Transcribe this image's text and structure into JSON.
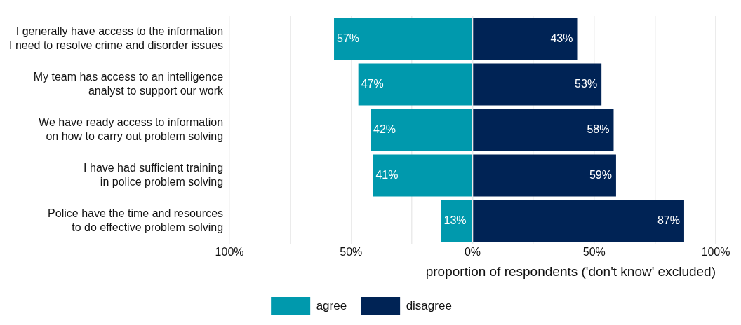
{
  "chart_data": {
    "type": "bar",
    "orientation": "horizontal",
    "categories": [
      "I generally have access to the information\nI need to resolve crime and disorder issues",
      "My team has access to an intelligence\nanalyst to support our work",
      "We have ready access to information\non how to carry out problem solving",
      "I have had sufficient training\nin police problem solving",
      "Police have the time and resources\nto do effective problem solving"
    ],
    "series": [
      {
        "name": "agree",
        "color": "#0099ad",
        "base": [
          -57,
          -47,
          -42,
          -41,
          -13
        ],
        "values": [
          57,
          47,
          42,
          41,
          13
        ],
        "value_labels": [
          "57%",
          "47%",
          "42%",
          "41%",
          "13%"
        ]
      },
      {
        "name": "disagree",
        "color": "#002355",
        "values": [
          43,
          53,
          58,
          59,
          87
        ],
        "value_labels": [
          "43%",
          "53%",
          "58%",
          "59%",
          "87%"
        ]
      }
    ],
    "xlabel": "proportion of respondents ('don't know' excluded)",
    "xlim": [
      -100,
      100
    ],
    "xticks": [
      {
        "value": -100,
        "label": "100%"
      },
      {
        "value": -75,
        "label": null
      },
      {
        "value": -50,
        "label": "50%"
      },
      {
        "value": -25,
        "label": null
      },
      {
        "value": 0,
        "label": "0%"
      },
      {
        "value": 25,
        "label": null
      },
      {
        "value": 50,
        "label": "50%"
      },
      {
        "value": 75,
        "label": null
      },
      {
        "value": 100,
        "label": "100%"
      }
    ],
    "grid": "x",
    "legend": "bottom"
  }
}
